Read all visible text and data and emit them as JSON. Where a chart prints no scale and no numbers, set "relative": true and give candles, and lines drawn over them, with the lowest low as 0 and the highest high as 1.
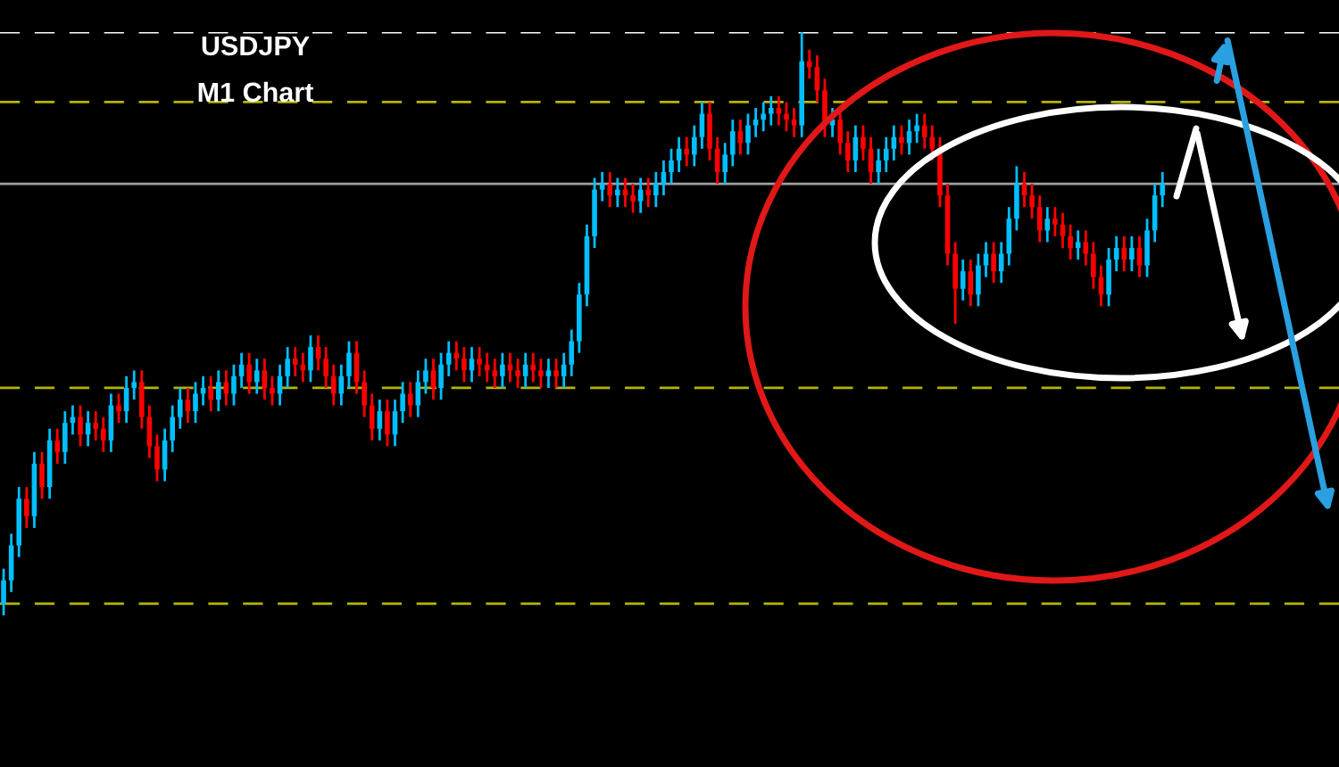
{
  "chart_data": {
    "type": "candlestick",
    "title": "USDJPY",
    "subtitle": "M1 Chart",
    "relative": true,
    "categories": [
      null,
      null,
      null,
      null,
      null,
      null,
      null,
      null,
      null,
      null,
      null,
      null,
      null,
      null,
      null,
      null,
      null,
      null,
      null,
      null,
      null,
      null,
      null,
      null,
      null,
      null,
      null,
      null,
      null,
      null,
      null,
      null,
      null,
      null,
      null,
      null,
      null,
      null,
      null,
      null,
      null,
      null,
      null,
      null,
      null,
      null,
      null,
      null,
      null,
      null,
      null,
      null,
      null,
      null,
      null,
      null,
      null,
      null,
      null,
      null,
      null,
      null,
      null,
      null,
      null,
      null,
      null,
      null,
      null,
      null,
      null,
      null,
      null,
      null,
      null,
      null,
      null,
      null,
      null,
      null,
      null,
      null,
      null,
      null,
      null,
      null,
      null,
      null,
      null,
      null,
      null,
      null,
      null,
      null,
      null,
      null,
      null,
      null,
      null,
      null,
      null,
      null,
      null,
      null,
      null,
      null,
      null,
      null,
      null,
      null,
      null,
      null,
      null,
      null,
      null,
      null,
      null,
      null,
      null,
      null,
      null,
      null,
      null,
      null,
      null,
      null,
      null,
      null,
      null,
      null,
      null,
      null,
      null,
      null,
      null,
      null,
      null,
      null,
      null,
      null,
      null,
      null,
      null,
      null,
      null,
      null,
      null,
      null,
      null,
      null,
      null,
      null
    ],
    "ohlc": [
      [
        0.02,
        0.08,
        0.0,
        0.06
      ],
      [
        0.06,
        0.14,
        0.04,
        0.12
      ],
      [
        0.12,
        0.22,
        0.1,
        0.2
      ],
      [
        0.2,
        0.22,
        0.15,
        0.17
      ],
      [
        0.17,
        0.28,
        0.15,
        0.26
      ],
      [
        0.26,
        0.28,
        0.2,
        0.22
      ],
      [
        0.22,
        0.32,
        0.2,
        0.3
      ],
      [
        0.3,
        0.32,
        0.26,
        0.28
      ],
      [
        0.28,
        0.35,
        0.26,
        0.33
      ],
      [
        0.33,
        0.36,
        0.31,
        0.34
      ],
      [
        0.34,
        0.36,
        0.29,
        0.31
      ],
      [
        0.31,
        0.35,
        0.29,
        0.33
      ],
      [
        0.33,
        0.35,
        0.3,
        0.32
      ],
      [
        0.32,
        0.34,
        0.28,
        0.3
      ],
      [
        0.3,
        0.38,
        0.28,
        0.36
      ],
      [
        0.36,
        0.38,
        0.33,
        0.35
      ],
      [
        0.35,
        0.41,
        0.33,
        0.39
      ],
      [
        0.39,
        0.42,
        0.37,
        0.4
      ],
      [
        0.4,
        0.42,
        0.32,
        0.34
      ],
      [
        0.34,
        0.36,
        0.27,
        0.29
      ],
      [
        0.29,
        0.31,
        0.23,
        0.25
      ],
      [
        0.25,
        0.32,
        0.23,
        0.3
      ],
      [
        0.3,
        0.36,
        0.28,
        0.34
      ],
      [
        0.34,
        0.39,
        0.32,
        0.37
      ],
      [
        0.37,
        0.39,
        0.33,
        0.35
      ],
      [
        0.35,
        0.4,
        0.33,
        0.38
      ],
      [
        0.38,
        0.41,
        0.36,
        0.39
      ],
      [
        0.39,
        0.41,
        0.35,
        0.37
      ],
      [
        0.37,
        0.42,
        0.35,
        0.4
      ],
      [
        0.4,
        0.42,
        0.36,
        0.38
      ],
      [
        0.38,
        0.43,
        0.36,
        0.41
      ],
      [
        0.41,
        0.45,
        0.39,
        0.43
      ],
      [
        0.43,
        0.45,
        0.38,
        0.4
      ],
      [
        0.4,
        0.44,
        0.38,
        0.42
      ],
      [
        0.42,
        0.44,
        0.37,
        0.39
      ],
      [
        0.39,
        0.41,
        0.36,
        0.38
      ],
      [
        0.38,
        0.43,
        0.36,
        0.41
      ],
      [
        0.41,
        0.46,
        0.39,
        0.44
      ],
      [
        0.44,
        0.46,
        0.41,
        0.43
      ],
      [
        0.43,
        0.45,
        0.4,
        0.42
      ],
      [
        0.42,
        0.48,
        0.4,
        0.46
      ],
      [
        0.46,
        0.48,
        0.42,
        0.44
      ],
      [
        0.44,
        0.46,
        0.39,
        0.41
      ],
      [
        0.41,
        0.43,
        0.36,
        0.38
      ],
      [
        0.38,
        0.43,
        0.36,
        0.41
      ],
      [
        0.41,
        0.47,
        0.39,
        0.45
      ],
      [
        0.45,
        0.47,
        0.38,
        0.4
      ],
      [
        0.4,
        0.42,
        0.34,
        0.36
      ],
      [
        0.36,
        0.38,
        0.3,
        0.32
      ],
      [
        0.32,
        0.37,
        0.3,
        0.35
      ],
      [
        0.35,
        0.37,
        0.29,
        0.31
      ],
      [
        0.31,
        0.37,
        0.29,
        0.35
      ],
      [
        0.35,
        0.4,
        0.33,
        0.38
      ],
      [
        0.38,
        0.4,
        0.34,
        0.36
      ],
      [
        0.36,
        0.42,
        0.34,
        0.4
      ],
      [
        0.4,
        0.44,
        0.38,
        0.42
      ],
      [
        0.42,
        0.44,
        0.37,
        0.39
      ],
      [
        0.39,
        0.45,
        0.37,
        0.43
      ],
      [
        0.43,
        0.47,
        0.41,
        0.45
      ],
      [
        0.45,
        0.47,
        0.42,
        0.44
      ],
      [
        0.44,
        0.46,
        0.4,
        0.42
      ],
      [
        0.42,
        0.46,
        0.4,
        0.44
      ],
      [
        0.44,
        0.46,
        0.41,
        0.43
      ],
      [
        0.43,
        0.45,
        0.4,
        0.42
      ],
      [
        0.42,
        0.44,
        0.39,
        0.41
      ],
      [
        0.41,
        0.45,
        0.39,
        0.43
      ],
      [
        0.43,
        0.45,
        0.4,
        0.42
      ],
      [
        0.42,
        0.44,
        0.39,
        0.41
      ],
      [
        0.41,
        0.45,
        0.39,
        0.43
      ],
      [
        0.43,
        0.45,
        0.4,
        0.42
      ],
      [
        0.42,
        0.44,
        0.39,
        0.41
      ],
      [
        0.41,
        0.44,
        0.39,
        0.42
      ],
      [
        0.42,
        0.44,
        0.39,
        0.41
      ],
      [
        0.41,
        0.45,
        0.39,
        0.43
      ],
      [
        0.43,
        0.49,
        0.41,
        0.47
      ],
      [
        0.47,
        0.57,
        0.45,
        0.55
      ],
      [
        0.55,
        0.67,
        0.53,
        0.65
      ],
      [
        0.65,
        0.75,
        0.63,
        0.73
      ],
      [
        0.73,
        0.76,
        0.71,
        0.74
      ],
      [
        0.74,
        0.76,
        0.7,
        0.72
      ],
      [
        0.72,
        0.75,
        0.7,
        0.73
      ],
      [
        0.73,
        0.75,
        0.7,
        0.72
      ],
      [
        0.72,
        0.74,
        0.69,
        0.71
      ],
      [
        0.71,
        0.75,
        0.69,
        0.73
      ],
      [
        0.73,
        0.75,
        0.7,
        0.72
      ],
      [
        0.72,
        0.76,
        0.7,
        0.74
      ],
      [
        0.74,
        0.78,
        0.72,
        0.76
      ],
      [
        0.76,
        0.8,
        0.74,
        0.78
      ],
      [
        0.78,
        0.82,
        0.76,
        0.8
      ],
      [
        0.8,
        0.82,
        0.77,
        0.79
      ],
      [
        0.79,
        0.84,
        0.77,
        0.82
      ],
      [
        0.82,
        0.88,
        0.8,
        0.86
      ],
      [
        0.86,
        0.88,
        0.78,
        0.8
      ],
      [
        0.8,
        0.82,
        0.74,
        0.76
      ],
      [
        0.76,
        0.81,
        0.74,
        0.79
      ],
      [
        0.79,
        0.85,
        0.77,
        0.83
      ],
      [
        0.83,
        0.85,
        0.79,
        0.81
      ],
      [
        0.81,
        0.86,
        0.79,
        0.84
      ],
      [
        0.84,
        0.87,
        0.82,
        0.85
      ],
      [
        0.85,
        0.88,
        0.83,
        0.86
      ],
      [
        0.86,
        0.89,
        0.84,
        0.87
      ],
      [
        0.87,
        0.89,
        0.84,
        0.86
      ],
      [
        0.86,
        0.88,
        0.83,
        0.85
      ],
      [
        0.85,
        0.87,
        0.82,
        0.84
      ],
      [
        0.84,
        1.0,
        0.82,
        0.95
      ],
      [
        0.95,
        0.97,
        0.92,
        0.94
      ],
      [
        0.94,
        0.96,
        0.88,
        0.9
      ],
      [
        0.9,
        0.92,
        0.82,
        0.84
      ],
      [
        0.84,
        0.87,
        0.82,
        0.85
      ],
      [
        0.85,
        0.87,
        0.79,
        0.81
      ],
      [
        0.81,
        0.83,
        0.76,
        0.78
      ],
      [
        0.78,
        0.84,
        0.76,
        0.82
      ],
      [
        0.82,
        0.84,
        0.78,
        0.8
      ],
      [
        0.8,
        0.82,
        0.74,
        0.76
      ],
      [
        0.76,
        0.8,
        0.74,
        0.78
      ],
      [
        0.78,
        0.82,
        0.76,
        0.8
      ],
      [
        0.8,
        0.84,
        0.78,
        0.82
      ],
      [
        0.82,
        0.84,
        0.79,
        0.81
      ],
      [
        0.81,
        0.85,
        0.79,
        0.83
      ],
      [
        0.83,
        0.86,
        0.81,
        0.84
      ],
      [
        0.84,
        0.86,
        0.8,
        0.82
      ],
      [
        0.82,
        0.84,
        0.78,
        0.8
      ],
      [
        0.8,
        0.82,
        0.7,
        0.72
      ],
      [
        0.72,
        0.74,
        0.6,
        0.62
      ],
      [
        0.62,
        0.64,
        0.5,
        0.56
      ],
      [
        0.56,
        0.61,
        0.54,
        0.59
      ],
      [
        0.59,
        0.61,
        0.53,
        0.55
      ],
      [
        0.55,
        0.62,
        0.53,
        0.6
      ],
      [
        0.6,
        0.64,
        0.58,
        0.62
      ],
      [
        0.62,
        0.64,
        0.57,
        0.59
      ],
      [
        0.59,
        0.64,
        0.57,
        0.62
      ],
      [
        0.62,
        0.7,
        0.6,
        0.68
      ],
      [
        0.68,
        0.77,
        0.66,
        0.74
      ],
      [
        0.74,
        0.76,
        0.7,
        0.72
      ],
      [
        0.72,
        0.74,
        0.68,
        0.7
      ],
      [
        0.7,
        0.72,
        0.64,
        0.66
      ],
      [
        0.66,
        0.7,
        0.64,
        0.68
      ],
      [
        0.68,
        0.7,
        0.65,
        0.67
      ],
      [
        0.67,
        0.69,
        0.63,
        0.65
      ],
      [
        0.65,
        0.67,
        0.61,
        0.63
      ],
      [
        0.63,
        0.66,
        0.61,
        0.64
      ],
      [
        0.64,
        0.66,
        0.6,
        0.62
      ],
      [
        0.62,
        0.64,
        0.56,
        0.58
      ],
      [
        0.58,
        0.6,
        0.53,
        0.55
      ],
      [
        0.55,
        0.63,
        0.53,
        0.61
      ],
      [
        0.61,
        0.65,
        0.59,
        0.63
      ],
      [
        0.63,
        0.65,
        0.59,
        0.61
      ],
      [
        0.61,
        0.65,
        0.59,
        0.63
      ],
      [
        0.63,
        0.65,
        0.58,
        0.6
      ],
      [
        0.6,
        0.68,
        0.58,
        0.66
      ],
      [
        0.66,
        0.74,
        0.64,
        0.72
      ],
      [
        0.72,
        0.76,
        0.7,
        0.74
      ]
    ],
    "colors": [
      "#00bfff",
      "#00bfff",
      "#00bfff",
      "#ff0000",
      "#00bfff",
      "#ff0000",
      "#00bfff",
      "#ff0000",
      "#00bfff",
      "#00bfff",
      "#ff0000",
      "#00bfff",
      "#ff0000",
      "#ff0000",
      "#00bfff",
      "#ff0000",
      "#00bfff",
      "#00bfff",
      "#ff0000",
      "#ff0000",
      "#ff0000",
      "#00bfff",
      "#00bfff",
      "#00bfff",
      "#ff0000",
      "#00bfff",
      "#00bfff",
      "#ff0000",
      "#00bfff",
      "#ff0000",
      "#00bfff",
      "#00bfff",
      "#ff0000",
      "#00bfff",
      "#ff0000",
      "#ff0000",
      "#00bfff",
      "#00bfff",
      "#ff0000",
      "#ff0000",
      "#00bfff",
      "#ff0000",
      "#ff0000",
      "#ff0000",
      "#00bfff",
      "#00bfff",
      "#ff0000",
      "#ff0000",
      "#ff0000",
      "#00bfff",
      "#ff0000",
      "#00bfff",
      "#00bfff",
      "#ff0000",
      "#00bfff",
      "#00bfff",
      "#ff0000",
      "#00bfff",
      "#00bfff",
      "#ff0000",
      "#ff0000",
      "#00bfff",
      "#ff0000",
      "#ff0000",
      "#ff0000",
      "#00bfff",
      "#ff0000",
      "#ff0000",
      "#00bfff",
      "#ff0000",
      "#ff0000",
      "#00bfff",
      "#ff0000",
      "#00bfff",
      "#00bfff",
      "#00bfff",
      "#00bfff",
      "#00bfff",
      "#00bfff",
      "#ff0000",
      "#00bfff",
      "#ff0000",
      "#ff0000",
      "#00bfff",
      "#ff0000",
      "#00bfff",
      "#00bfff",
      "#00bfff",
      "#00bfff",
      "#ff0000",
      "#00bfff",
      "#00bfff",
      "#ff0000",
      "#ff0000",
      "#00bfff",
      "#00bfff",
      "#ff0000",
      "#00bfff",
      "#00bfff",
      "#00bfff",
      "#00bfff",
      "#ff0000",
      "#ff0000",
      "#ff0000",
      "#00bfff",
      "#ff0000",
      "#ff0000",
      "#ff0000",
      "#00bfff",
      "#ff0000",
      "#ff0000",
      "#00bfff",
      "#ff0000",
      "#ff0000",
      "#00bfff",
      "#00bfff",
      "#00bfff",
      "#ff0000",
      "#00bfff",
      "#00bfff",
      "#ff0000",
      "#ff0000",
      "#ff0000",
      "#ff0000",
      "#ff0000",
      "#00bfff",
      "#ff0000",
      "#00bfff",
      "#00bfff",
      "#ff0000",
      "#00bfff",
      "#00bfff",
      "#00bfff",
      "#ff0000",
      "#ff0000",
      "#ff0000",
      "#00bfff",
      "#ff0000",
      "#ff0000",
      "#ff0000",
      "#00bfff",
      "#ff0000",
      "#ff0000",
      "#ff0000",
      "#00bfff",
      "#00bfff",
      "#ff0000",
      "#00bfff",
      "#ff0000",
      "#00bfff",
      "#00bfff",
      "#00bfff"
    ],
    "ref_lines": [
      {
        "axis": "y",
        "value": 1.0,
        "color": "#ffffff",
        "line_style": "dashed"
      },
      {
        "axis": "y",
        "value": 0.88,
        "color": "#b5b500",
        "line_style": "dashed"
      },
      {
        "axis": "y",
        "value": 0.74,
        "color": "#a0a0a0",
        "line_style": "solid"
      },
      {
        "axis": "y",
        "value": 0.39,
        "color": "#b5b500",
        "line_style": "dashed"
      },
      {
        "axis": "y",
        "value": 0.02,
        "color": "#b5b500",
        "line_style": "dashed"
      }
    ]
  }
}
